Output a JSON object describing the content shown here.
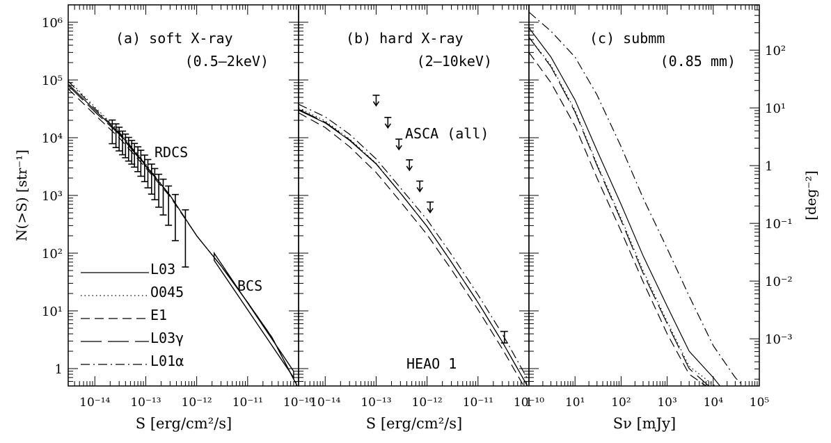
{
  "figure": {
    "y_axis_label": "N(>S) [str⁻¹]",
    "right_axis_label": "[deg⁻²]",
    "y_ticks": [
      "1",
      "10¹",
      "10²",
      "10³",
      "10⁴",
      "10⁵",
      "10⁶"
    ],
    "right_ticks": [
      "10⁻³",
      "10⁻²",
      "10⁻¹",
      "1",
      "10¹",
      "10²"
    ],
    "legend": [
      {
        "label": "L03",
        "dash": "solid"
      },
      {
        "label": "O045",
        "dash": "dotted"
      },
      {
        "label": "E1",
        "dash": "dashed"
      },
      {
        "label": "L03γ",
        "dash": "longdash"
      },
      {
        "label": "L01α",
        "dash": "dashdot"
      }
    ]
  },
  "chart_data": [
    {
      "type": "line",
      "panel_label": "(a) soft X-ray",
      "band": "(0.5–2keV)",
      "xlabel": "S [erg/cm²/s]",
      "ylabel": "N(>S) [str⁻¹]",
      "x_scale": "log",
      "y_scale": "log",
      "xlim": [
        3e-15,
        1e-10
      ],
      "ylim": [
        0.5,
        2000000
      ],
      "x_ticks": [
        "10⁻¹⁴",
        "10⁻¹³",
        "10⁻¹²",
        "10⁻¹¹",
        "10⁻¹⁰"
      ],
      "annotations": [
        "RDCS",
        "BCS"
      ],
      "series": [
        {
          "name": "L03",
          "x": [
            3e-15,
            1e-14,
            3e-14,
            1e-13,
            3e-13,
            1e-12,
            3e-12,
            1e-11,
            3e-11,
            1e-10
          ],
          "y": [
            85000,
            30000,
            12000,
            3300,
            1000,
            200,
            60,
            14,
            3.5,
            0.45
          ]
        },
        {
          "name": "O045",
          "x": [
            3e-15,
            1e-14,
            3e-14,
            1e-13,
            3e-13,
            1e-12,
            3e-12,
            1e-11,
            3e-11,
            1e-10
          ],
          "y": [
            100000,
            34000,
            13000,
            3500,
            1000,
            200,
            60,
            14,
            3.5,
            0.45
          ]
        },
        {
          "name": "E1",
          "x": [
            3e-15,
            1e-14,
            3e-14,
            1e-13,
            3e-13,
            1e-12,
            3e-12,
            1e-11,
            3e-11,
            1e-10
          ],
          "y": [
            70000,
            25000,
            10000,
            3000,
            950,
            200,
            60,
            14,
            3.5,
            0.45
          ]
        },
        {
          "name": "L03γ",
          "x": [
            3e-15,
            1e-14,
            3e-14,
            1e-13,
            3e-13,
            1e-12,
            3e-12,
            1e-11,
            3e-11,
            1e-10
          ],
          "y": [
            80000,
            28000,
            11500,
            3200,
            1000,
            200,
            60,
            14,
            3.5,
            0.45
          ]
        },
        {
          "name": "L01α",
          "x": [
            3e-15,
            1e-14,
            3e-14,
            1e-13,
            3e-13,
            1e-12,
            3e-12,
            1e-11,
            3e-11,
            1e-10
          ],
          "y": [
            95000,
            32000,
            12500,
            3400,
            1000,
            200,
            60,
            14,
            3.5,
            0.45
          ]
        },
        {
          "name": "RDCS",
          "type": "errorbar",
          "x": [
            2.2e-14,
            2.6e-14,
            3e-14,
            3.5e-14,
            4e-14,
            4.6e-14,
            5.3e-14,
            6e-14,
            7e-14,
            8e-14,
            9.5e-14,
            1.1e-13,
            1.3e-13,
            1.5e-13,
            1.8e-13,
            2.2e-13,
            2.8e-13,
            3.8e-13,
            6e-13
          ],
          "y": [
            14000,
            12000,
            10500,
            9000,
            8000,
            7000,
            6200,
            5500,
            4700,
            4000,
            3300,
            2700,
            2200,
            1800,
            1400,
            1100,
            800,
            520,
            240
          ],
          "err_lo": [
            0.25,
            0.25,
            0.25,
            0.25,
            0.25,
            0.25,
            0.25,
            0.25,
            0.26,
            0.27,
            0.28,
            0.3,
            0.32,
            0.33,
            0.35,
            0.38,
            0.42,
            0.5,
            0.62
          ],
          "err_hi": [
            0.16,
            0.16,
            0.16,
            0.16,
            0.16,
            0.16,
            0.16,
            0.16,
            0.17,
            0.18,
            0.18,
            0.19,
            0.2,
            0.21,
            0.22,
            0.24,
            0.26,
            0.3,
            0.37
          ]
        },
        {
          "name": "BCS",
          "type": "band",
          "x": [
            2.2e-12,
            8e-11
          ],
          "y_lo": [
            75,
            0.7
          ],
          "y_hi": [
            100,
            0.9
          ]
        }
      ]
    },
    {
      "type": "line",
      "panel_label": "(b) hard X-ray",
      "band": "(2–10keV)",
      "xlabel": "S [erg/cm²/s]",
      "x_scale": "log",
      "y_scale": "log",
      "xlim": [
        3e-15,
        1e-10
      ],
      "ylim": [
        0.5,
        2000000
      ],
      "x_ticks": [
        "10⁻¹⁴",
        "10⁻¹³",
        "10⁻¹²",
        "10⁻¹¹",
        "10⁻¹⁰"
      ],
      "annotations": [
        "ASCA (all)",
        "HEAO 1"
      ],
      "series": [
        {
          "name": "L03",
          "x": [
            3e-15,
            1e-14,
            3e-14,
            1e-13,
            3e-13,
            1e-12,
            3e-12,
            1e-11,
            3e-11,
            1e-10
          ],
          "y": [
            30000,
            18000,
            9000,
            3500,
            1100,
            290,
            70,
            14,
            2.9,
            0.45
          ]
        },
        {
          "name": "O045",
          "x": [
            3e-15,
            1e-14,
            3e-14,
            1e-13,
            3e-13,
            1e-12,
            3e-12,
            1e-11,
            3e-11,
            1e-10
          ],
          "y": [
            33000,
            19500,
            9500,
            3600,
            1100,
            290,
            70,
            14,
            2.9,
            0.45
          ]
        },
        {
          "name": "E1",
          "x": [
            3e-15,
            1e-14,
            3e-14,
            1e-13,
            3e-13,
            1e-12,
            3e-12,
            1e-11,
            3e-11,
            1e-10
          ],
          "y": [
            27000,
            15000,
            7000,
            2500,
            780,
            210,
            52,
            10.5,
            2.2,
            0.35
          ]
        },
        {
          "name": "L03γ",
          "x": [
            3e-15,
            1e-14,
            3e-14,
            1e-13,
            3e-13,
            1e-12,
            3e-12,
            1e-11,
            3e-11,
            1e-10
          ],
          "y": [
            31000,
            18500,
            9200,
            3550,
            1100,
            290,
            70,
            14,
            2.9,
            0.45
          ]
        },
        {
          "name": "L01α",
          "x": [
            3e-15,
            1e-14,
            3e-14,
            1e-13,
            3e-13,
            1e-12,
            3e-12,
            1e-11,
            3e-11,
            1e-10
          ],
          "y": [
            38000,
            23000,
            11500,
            4300,
            1350,
            380,
            95,
            19,
            4,
            0.6
          ]
        },
        {
          "name": "ASCA (all)",
          "type": "upper_limit",
          "x": [
            1e-13,
            1.7e-13,
            2.8e-13,
            4.5e-13,
            7.2e-13,
            1.15e-12
          ],
          "y": [
            46000,
            19000,
            8000,
            3500,
            1500,
            650
          ]
        },
        {
          "name": "HEAO 1",
          "type": "errorbar",
          "x": [
            3.3e-11
          ],
          "y": [
            3.5
          ],
          "err_lo": [
            0.1
          ],
          "err_hi": [
            0.1
          ]
        }
      ]
    },
    {
      "type": "line",
      "panel_label": "(c) submm",
      "band": "(0.85 mm)",
      "xlabel": "Sν [mJy]",
      "x_scale": "log",
      "y_scale": "log",
      "xlim": [
        1,
        100000
      ],
      "ylim": [
        0.5,
        2000000
      ],
      "x_ticks": [
        "1",
        "10¹",
        "10²",
        "10³",
        "10⁴",
        "10⁵"
      ],
      "series": [
        {
          "name": "L03",
          "x": [
            1,
            3,
            10,
            30,
            100,
            300,
            1000,
            3000,
            10000,
            14000
          ],
          "y": [
            800000,
            250000,
            45000,
            6000,
            700,
            90,
            12,
            2,
            0.7,
            0.5
          ]
        },
        {
          "name": "O045",
          "x": [
            1,
            3,
            10,
            30,
            100,
            300,
            1000,
            3000,
            8000,
            11000
          ],
          "y": [
            550000,
            180000,
            30000,
            3500,
            400,
            50,
            6.5,
            1.1,
            0.6,
            0.5
          ]
        },
        {
          "name": "E1",
          "x": [
            1,
            3,
            10,
            30,
            100,
            300,
            1000,
            3000,
            7000
          ],
          "y": [
            300000,
            90000,
            16000,
            2000,
            240,
            32,
            4,
            0.8,
            0.5
          ]
        },
        {
          "name": "L03γ",
          "x": [
            1,
            3,
            10,
            30,
            100,
            300,
            1000,
            3000,
            8000
          ],
          "y": [
            550000,
            170000,
            28000,
            3300,
            370,
            45,
            6,
            1,
            0.5
          ]
        },
        {
          "name": "L01α",
          "x": [
            1,
            3,
            10,
            30,
            100,
            300,
            1000,
            3000,
            10000,
            30000,
            45000
          ],
          "y": [
            1500000,
            700000,
            250000,
            55000,
            7000,
            900,
            120,
            18,
            2.5,
            0.7,
            0.5
          ]
        }
      ]
    }
  ]
}
